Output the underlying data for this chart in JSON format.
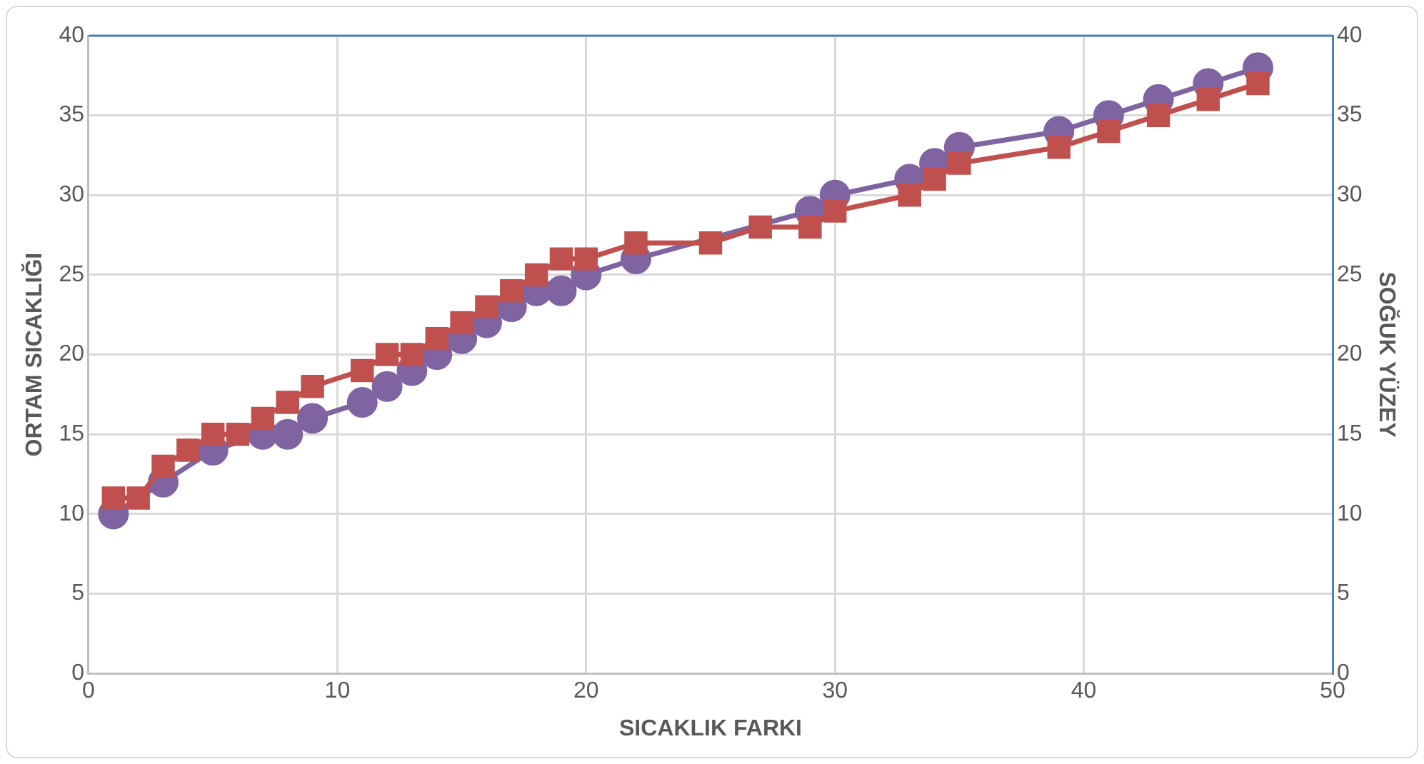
{
  "chart_data": {
    "type": "line",
    "xlabel": "SICAKLIK FARKI",
    "ylabel": "ORTAM SICAKLIĞI",
    "y2label": "SOĞUK YÜZEY",
    "x": [
      1,
      2,
      3,
      4,
      5,
      6,
      7,
      8,
      9,
      11,
      12,
      13,
      14,
      15,
      16,
      17,
      18,
      19,
      20,
      22,
      25,
      27,
      29,
      30,
      33,
      34,
      35,
      39,
      41,
      43,
      45,
      47
    ],
    "series": [
      {
        "color": "#8064a2",
        "marker": "circle",
        "values": [
          10,
          null,
          12,
          null,
          14,
          null,
          15,
          15,
          16,
          17,
          18,
          19,
          20,
          21,
          22,
          23,
          24,
          24,
          25,
          26,
          null,
          null,
          29,
          30,
          31,
          32,
          33,
          34,
          35,
          36,
          37,
          38
        ]
      },
      {
        "color": "#c0504d",
        "marker": "square",
        "axis": "y2",
        "values": [
          11,
          11,
          13,
          14,
          15,
          15,
          16,
          17,
          18,
          19,
          20,
          20,
          21,
          22,
          23,
          24,
          25,
          26,
          26,
          27,
          27,
          28,
          28,
          29,
          30,
          31,
          32,
          33,
          34,
          35,
          36,
          37
        ]
      }
    ],
    "xlim": [
      0,
      50
    ],
    "xticks": [
      0,
      10,
      20,
      30,
      40,
      50
    ],
    "ylim": [
      0,
      40
    ],
    "yticks": [
      0,
      5,
      10,
      15,
      20,
      25,
      30,
      35,
      40
    ],
    "y2lim": [
      0,
      40
    ],
    "y2ticks": [
      0,
      5,
      10,
      15,
      20,
      25,
      30,
      35,
      40
    ],
    "grid": true,
    "legend": false
  }
}
